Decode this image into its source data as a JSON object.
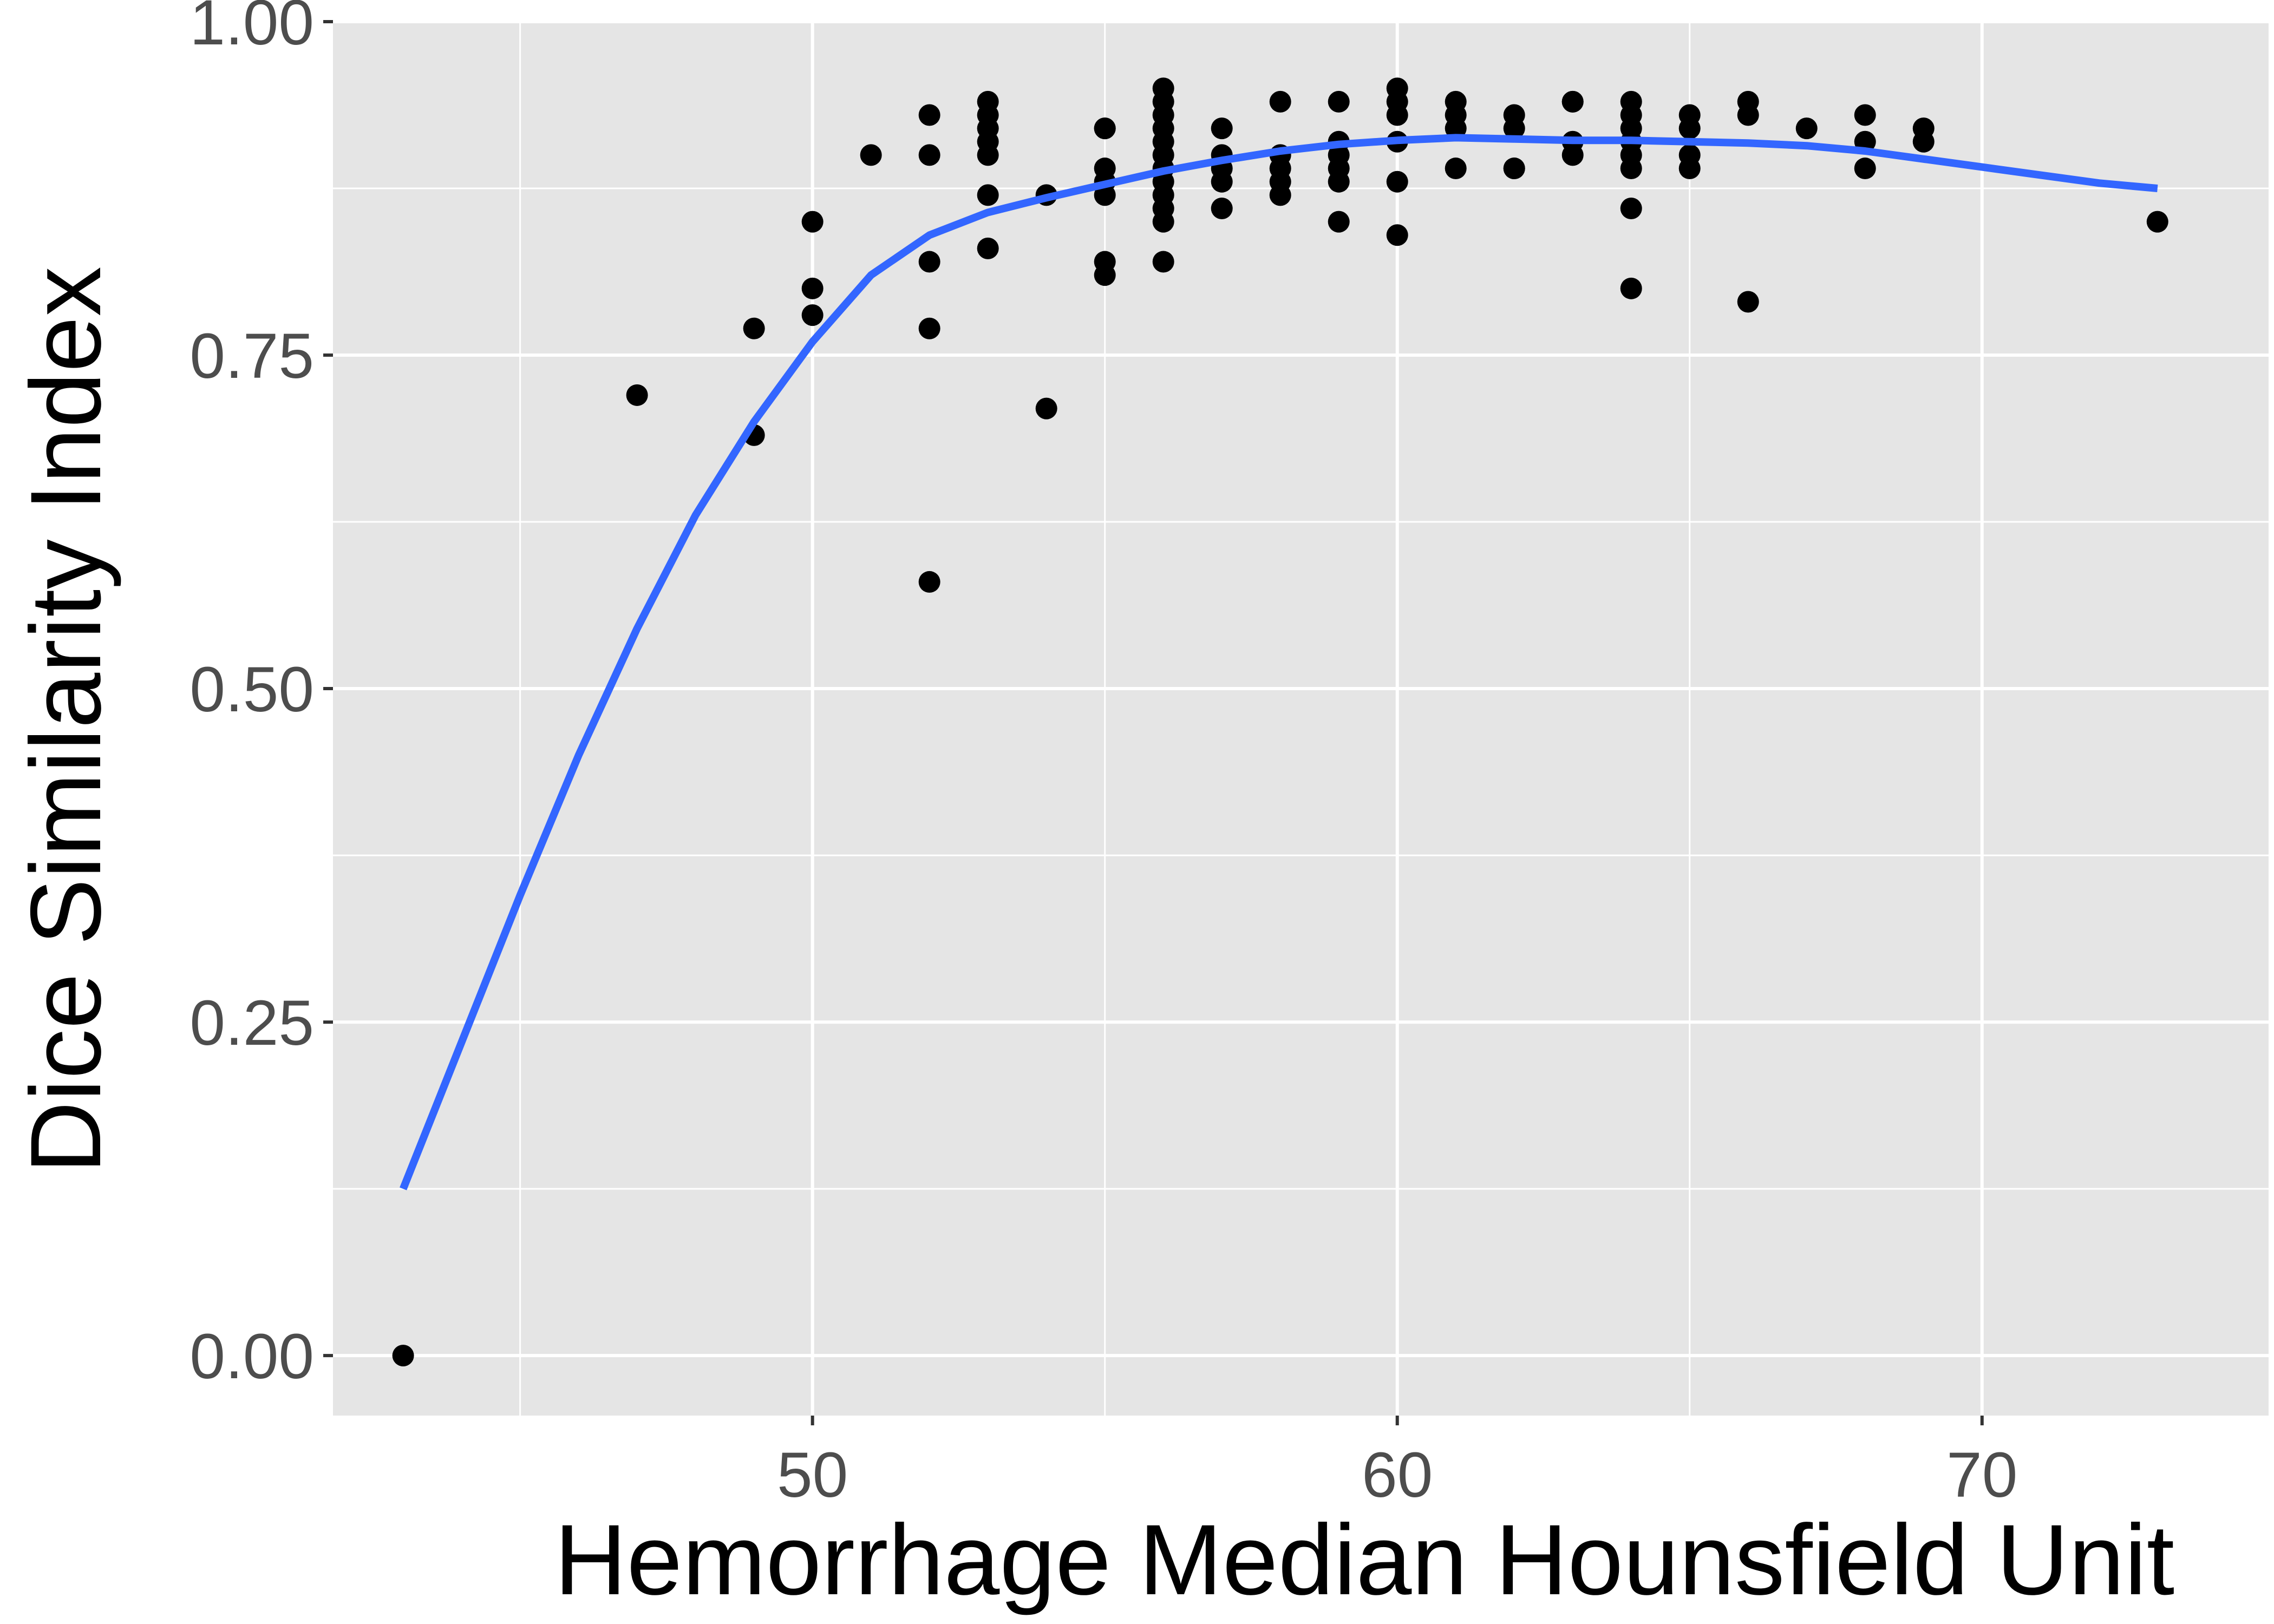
{
  "chart_data": {
    "type": "scatter",
    "title": "",
    "xlabel": "Hemorrhage Median Hounsfield Unit",
    "ylabel": "Dice Similarity Index",
    "xlim": [
      41.8,
      74.9
    ],
    "ylim": [
      -0.045,
      1.0
    ],
    "x_ticks": [
      {
        "value": 50,
        "label": "50"
      },
      {
        "value": 60,
        "label": "60"
      },
      {
        "value": 70,
        "label": "70"
      }
    ],
    "x_minor_ticks": [
      45,
      55,
      65
    ],
    "y_ticks": [
      {
        "value": 0.0,
        "label": "0.00"
      },
      {
        "value": 0.25,
        "label": "0.25"
      },
      {
        "value": 0.5,
        "label": "0.50"
      },
      {
        "value": 0.75,
        "label": "0.75"
      },
      {
        "value": 1.0,
        "label": "1.00"
      }
    ],
    "y_minor_ticks": [
      0.125,
      0.375,
      0.625,
      0.875
    ],
    "grid": true,
    "legend": "none",
    "colors": {
      "panel_background": "#e5e5e5",
      "grid": "#ffffff",
      "points": "#000000",
      "smooth_line": "#3366ff",
      "tick_text": "#4d4d4d",
      "axis_title": "#000000"
    },
    "points": [
      [
        43,
        0.0
      ],
      [
        47,
        0.72
      ],
      [
        49,
        0.77
      ],
      [
        49,
        0.69
      ],
      [
        50,
        0.85
      ],
      [
        50,
        0.8
      ],
      [
        50,
        0.78
      ],
      [
        51,
        0.9
      ],
      [
        52,
        0.93
      ],
      [
        52,
        0.9
      ],
      [
        52,
        0.82
      ],
      [
        52,
        0.77
      ],
      [
        52,
        0.58
      ],
      [
        53,
        0.94
      ],
      [
        53,
        0.93
      ],
      [
        53,
        0.92
      ],
      [
        53,
        0.91
      ],
      [
        53,
        0.9
      ],
      [
        53,
        0.87
      ],
      [
        53,
        0.83
      ],
      [
        54,
        0.87
      ],
      [
        54,
        0.71
      ],
      [
        55,
        0.92
      ],
      [
        55,
        0.92
      ],
      [
        55,
        0.89
      ],
      [
        55,
        0.88
      ],
      [
        55,
        0.87
      ],
      [
        55,
        0.82
      ],
      [
        55,
        0.81
      ],
      [
        56,
        0.95
      ],
      [
        56,
        0.94
      ],
      [
        56,
        0.93
      ],
      [
        56,
        0.92
      ],
      [
        56,
        0.91
      ],
      [
        56,
        0.9
      ],
      [
        56,
        0.89
      ],
      [
        56,
        0.88
      ],
      [
        56,
        0.87
      ],
      [
        56,
        0.86
      ],
      [
        56,
        0.85
      ],
      [
        56,
        0.82
      ],
      [
        57,
        0.92
      ],
      [
        57,
        0.9
      ],
      [
        57,
        0.89
      ],
      [
        57,
        0.88
      ],
      [
        57,
        0.86
      ],
      [
        58,
        0.94
      ],
      [
        58,
        0.9
      ],
      [
        58,
        0.89
      ],
      [
        58,
        0.88
      ],
      [
        58,
        0.87
      ],
      [
        59,
        0.94
      ],
      [
        59,
        0.91
      ],
      [
        59,
        0.9
      ],
      [
        59,
        0.89
      ],
      [
        59,
        0.88
      ],
      [
        59,
        0.85
      ],
      [
        60,
        0.95
      ],
      [
        60,
        0.94
      ],
      [
        60,
        0.93
      ],
      [
        60,
        0.91
      ],
      [
        60,
        0.88
      ],
      [
        60,
        0.84
      ],
      [
        61,
        0.94
      ],
      [
        61,
        0.93
      ],
      [
        61,
        0.92
      ],
      [
        61,
        0.89
      ],
      [
        62,
        0.93
      ],
      [
        62,
        0.92
      ],
      [
        62,
        0.89
      ],
      [
        62,
        0.89
      ],
      [
        63,
        0.94
      ],
      [
        63,
        0.94
      ],
      [
        63,
        0.91
      ],
      [
        63,
        0.9
      ],
      [
        64,
        0.94
      ],
      [
        64,
        0.93
      ],
      [
        64,
        0.92
      ],
      [
        64,
        0.91
      ],
      [
        64,
        0.9
      ],
      [
        64,
        0.89
      ],
      [
        64,
        0.86
      ],
      [
        64,
        0.8
      ],
      [
        65,
        0.93
      ],
      [
        65,
        0.92
      ],
      [
        65,
        0.9
      ],
      [
        65,
        0.89
      ],
      [
        66,
        0.94
      ],
      [
        66,
        0.93
      ],
      [
        66,
        0.79
      ],
      [
        67,
        0.92
      ],
      [
        68,
        0.93
      ],
      [
        68,
        0.91
      ],
      [
        68,
        0.89
      ],
      [
        69,
        0.92
      ],
      [
        69,
        0.91
      ],
      [
        73,
        0.85
      ]
    ],
    "smooth_curve": [
      [
        43.0,
        0.125
      ],
      [
        44.0,
        0.235
      ],
      [
        45.0,
        0.345
      ],
      [
        46.0,
        0.45
      ],
      [
        47.0,
        0.545
      ],
      [
        48.0,
        0.63
      ],
      [
        49.0,
        0.7
      ],
      [
        50.0,
        0.76
      ],
      [
        51.0,
        0.81
      ],
      [
        52.0,
        0.84
      ],
      [
        53.0,
        0.857
      ],
      [
        54.0,
        0.868
      ],
      [
        55.0,
        0.878
      ],
      [
        56.0,
        0.888
      ],
      [
        57.0,
        0.896
      ],
      [
        58.0,
        0.903
      ],
      [
        59.0,
        0.908
      ],
      [
        60.0,
        0.911
      ],
      [
        61.0,
        0.913
      ],
      [
        62.0,
        0.912
      ],
      [
        63.0,
        0.911
      ],
      [
        64.0,
        0.911
      ],
      [
        65.0,
        0.91
      ],
      [
        66.0,
        0.909
      ],
      [
        67.0,
        0.907
      ],
      [
        68.0,
        0.903
      ],
      [
        69.0,
        0.897
      ],
      [
        70.0,
        0.891
      ],
      [
        71.0,
        0.885
      ],
      [
        72.0,
        0.879
      ],
      [
        73.0,
        0.875
      ]
    ]
  }
}
